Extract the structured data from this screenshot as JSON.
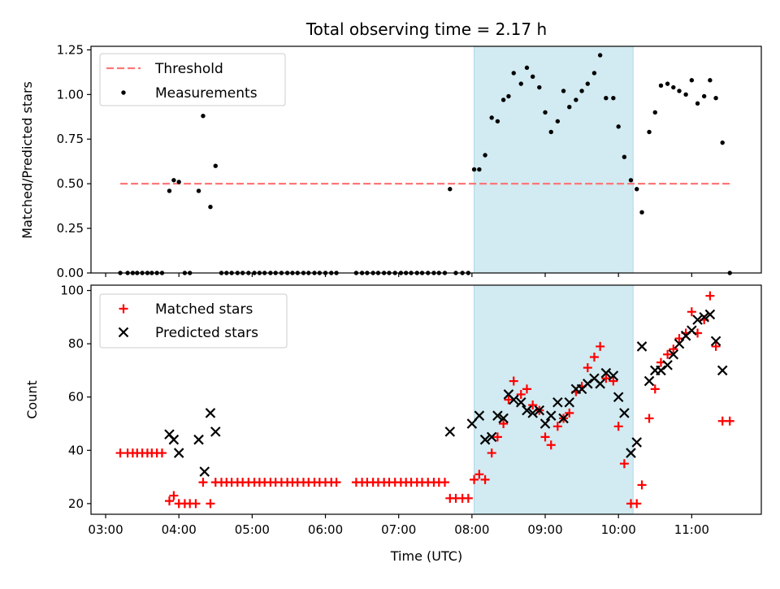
{
  "chart_data": [
    {
      "type": "scatter",
      "title": "Total observing time = 2.17 h",
      "xlabel": "",
      "ylabel": "Matched/Predicted stars",
      "xlim": [
        2.8,
        11.95
      ],
      "ylim": [
        0,
        1.27
      ],
      "yticks": [
        "0.00",
        "0.25",
        "0.50",
        "0.75",
        "1.00",
        "1.25"
      ],
      "shaded_span": [
        8.03,
        10.2
      ],
      "shade_color": "#add8e6",
      "legend_position": "top-left",
      "threshold": {
        "name": "Threshold",
        "value": 0.5,
        "x_range": [
          3.2,
          11.55
        ],
        "color": "#ff7777",
        "style": "dashed"
      },
      "series": [
        {
          "name": "Measurements",
          "marker": "dot",
          "color": "#000000",
          "points": [
            [
              3.2,
              0
            ],
            [
              3.3,
              0
            ],
            [
              3.37,
              0
            ],
            [
              3.43,
              0
            ],
            [
              3.5,
              0
            ],
            [
              3.57,
              0
            ],
            [
              3.63,
              0
            ],
            [
              3.7,
              0
            ],
            [
              3.77,
              0
            ],
            [
              3.87,
              0.46
            ],
            [
              3.93,
              0.52
            ],
            [
              4.0,
              0.51
            ],
            [
              4.08,
              0
            ],
            [
              4.15,
              0
            ],
            [
              4.27,
              0.46
            ],
            [
              4.33,
              0.88
            ],
            [
              4.43,
              0.37
            ],
            [
              4.5,
              0.6
            ],
            [
              4.58,
              0
            ],
            [
              4.65,
              0
            ],
            [
              4.72,
              0
            ],
            [
              4.8,
              0
            ],
            [
              4.87,
              0
            ],
            [
              4.95,
              0
            ],
            [
              5.03,
              0
            ],
            [
              5.1,
              0
            ],
            [
              5.17,
              0
            ],
            [
              5.25,
              0
            ],
            [
              5.32,
              0
            ],
            [
              5.4,
              0
            ],
            [
              5.48,
              0
            ],
            [
              5.55,
              0
            ],
            [
              5.62,
              0
            ],
            [
              5.7,
              0
            ],
            [
              5.77,
              0
            ],
            [
              5.85,
              0
            ],
            [
              5.92,
              0
            ],
            [
              6.0,
              0
            ],
            [
              6.08,
              0
            ],
            [
              6.15,
              0
            ],
            [
              6.42,
              0
            ],
            [
              6.5,
              0
            ],
            [
              6.57,
              0
            ],
            [
              6.65,
              0
            ],
            [
              6.72,
              0
            ],
            [
              6.8,
              0
            ],
            [
              6.87,
              0
            ],
            [
              6.95,
              0
            ],
            [
              7.03,
              0
            ],
            [
              7.1,
              0
            ],
            [
              7.17,
              0
            ],
            [
              7.25,
              0
            ],
            [
              7.32,
              0
            ],
            [
              7.4,
              0
            ],
            [
              7.48,
              0
            ],
            [
              7.55,
              0
            ],
            [
              7.63,
              0
            ],
            [
              7.7,
              0.47
            ],
            [
              7.78,
              0
            ],
            [
              7.87,
              0
            ],
            [
              7.95,
              0
            ],
            [
              8.03,
              0.58
            ],
            [
              8.1,
              0.58
            ],
            [
              8.18,
              0.66
            ],
            [
              8.27,
              0.87
            ],
            [
              8.35,
              0.85
            ],
            [
              8.43,
              0.97
            ],
            [
              8.5,
              0.99
            ],
            [
              8.57,
              1.12
            ],
            [
              8.67,
              1.06
            ],
            [
              8.75,
              1.15
            ],
            [
              8.83,
              1.1
            ],
            [
              8.92,
              1.04
            ],
            [
              9.0,
              0.9
            ],
            [
              9.08,
              0.79
            ],
            [
              9.17,
              0.85
            ],
            [
              9.25,
              1.02
            ],
            [
              9.33,
              0.93
            ],
            [
              9.42,
              0.97
            ],
            [
              9.5,
              1.02
            ],
            [
              9.58,
              1.06
            ],
            [
              9.67,
              1.12
            ],
            [
              9.75,
              1.22
            ],
            [
              9.83,
              0.98
            ],
            [
              9.93,
              0.98
            ],
            [
              10.0,
              0.82
            ],
            [
              10.08,
              0.65
            ],
            [
              10.17,
              0.52
            ],
            [
              10.25,
              0.47
            ],
            [
              10.32,
              0.34
            ],
            [
              10.42,
              0.79
            ],
            [
              10.5,
              0.9
            ],
            [
              10.58,
              1.05
            ],
            [
              10.67,
              1.06
            ],
            [
              10.75,
              1.04
            ],
            [
              10.83,
              1.02
            ],
            [
              10.92,
              1.0
            ],
            [
              11.0,
              1.08
            ],
            [
              11.08,
              0.95
            ],
            [
              11.17,
              0.99
            ],
            [
              11.25,
              1.08
            ],
            [
              11.33,
              0.98
            ],
            [
              11.42,
              0.73
            ],
            [
              11.52,
              0
            ]
          ]
        }
      ]
    },
    {
      "type": "scatter",
      "title": "",
      "xlabel": "Time (UTC)",
      "ylabel": "Count",
      "xlim": [
        2.8,
        11.95
      ],
      "ylim": [
        16,
        102
      ],
      "yticks": [
        "20",
        "40",
        "60",
        "80",
        "100"
      ],
      "xticks": [
        "03:00",
        "04:00",
        "05:00",
        "06:00",
        "07:00",
        "08:00",
        "09:00",
        "10:00",
        "11:00"
      ],
      "shaded_span": [
        8.03,
        10.2
      ],
      "shade_color": "#add8e6",
      "legend_position": "top-left",
      "series": [
        {
          "name": "Matched stars",
          "marker": "plus",
          "color": "#ff0000",
          "points": [
            [
              3.2,
              39
            ],
            [
              3.3,
              39
            ],
            [
              3.37,
              39
            ],
            [
              3.43,
              39
            ],
            [
              3.5,
              39
            ],
            [
              3.57,
              39
            ],
            [
              3.63,
              39
            ],
            [
              3.7,
              39
            ],
            [
              3.77,
              39
            ],
            [
              3.87,
              21
            ],
            [
              3.93,
              23
            ],
            [
              4.0,
              20
            ],
            [
              4.08,
              20
            ],
            [
              4.15,
              20
            ],
            [
              4.23,
              20
            ],
            [
              4.33,
              28
            ],
            [
              4.43,
              20
            ],
            [
              4.5,
              28
            ],
            [
              4.58,
              28
            ],
            [
              4.65,
              28
            ],
            [
              4.72,
              28
            ],
            [
              4.8,
              28
            ],
            [
              4.87,
              28
            ],
            [
              4.95,
              28
            ],
            [
              5.03,
              28
            ],
            [
              5.1,
              28
            ],
            [
              5.17,
              28
            ],
            [
              5.25,
              28
            ],
            [
              5.32,
              28
            ],
            [
              5.4,
              28
            ],
            [
              5.48,
              28
            ],
            [
              5.55,
              28
            ],
            [
              5.62,
              28
            ],
            [
              5.7,
              28
            ],
            [
              5.77,
              28
            ],
            [
              5.85,
              28
            ],
            [
              5.92,
              28
            ],
            [
              6.0,
              28
            ],
            [
              6.08,
              28
            ],
            [
              6.15,
              28
            ],
            [
              6.42,
              28
            ],
            [
              6.5,
              28
            ],
            [
              6.57,
              28
            ],
            [
              6.65,
              28
            ],
            [
              6.72,
              28
            ],
            [
              6.8,
              28
            ],
            [
              6.87,
              28
            ],
            [
              6.95,
              28
            ],
            [
              7.03,
              28
            ],
            [
              7.1,
              28
            ],
            [
              7.17,
              28
            ],
            [
              7.25,
              28
            ],
            [
              7.32,
              28
            ],
            [
              7.4,
              28
            ],
            [
              7.48,
              28
            ],
            [
              7.55,
              28
            ],
            [
              7.63,
              28
            ],
            [
              7.7,
              22
            ],
            [
              7.78,
              22
            ],
            [
              7.87,
              22
            ],
            [
              7.95,
              22
            ],
            [
              8.03,
              29
            ],
            [
              8.1,
              31
            ],
            [
              8.18,
              29
            ],
            [
              8.27,
              39
            ],
            [
              8.35,
              45
            ],
            [
              8.43,
              50
            ],
            [
              8.5,
              59
            ],
            [
              8.57,
              66
            ],
            [
              8.67,
              61
            ],
            [
              8.75,
              63
            ],
            [
              8.83,
              57
            ],
            [
              8.92,
              55
            ],
            [
              9.0,
              45
            ],
            [
              9.08,
              42
            ],
            [
              9.17,
              49
            ],
            [
              9.25,
              52
            ],
            [
              9.33,
              54
            ],
            [
              9.42,
              62
            ],
            [
              9.5,
              64
            ],
            [
              9.58,
              71
            ],
            [
              9.67,
              75
            ],
            [
              9.75,
              79
            ],
            [
              9.83,
              67
            ],
            [
              9.93,
              66
            ],
            [
              10.0,
              49
            ],
            [
              10.08,
              35
            ],
            [
              10.17,
              20
            ],
            [
              10.25,
              20
            ],
            [
              10.32,
              27
            ],
            [
              10.42,
              52
            ],
            [
              10.5,
              63
            ],
            [
              10.58,
              73
            ],
            [
              10.67,
              76
            ],
            [
              10.75,
              78
            ],
            [
              10.83,
              82
            ],
            [
              10.92,
              84
            ],
            [
              11.0,
              92
            ],
            [
              11.08,
              84
            ],
            [
              11.17,
              89
            ],
            [
              11.25,
              98
            ],
            [
              11.33,
              79
            ],
            [
              11.42,
              51
            ],
            [
              11.52,
              51
            ]
          ]
        },
        {
          "name": "Predicted stars",
          "marker": "x",
          "color": "#000000",
          "points": [
            [
              3.87,
              46
            ],
            [
              3.93,
              44
            ],
            [
              4.0,
              39
            ],
            [
              4.27,
              44
            ],
            [
              4.35,
              32
            ],
            [
              4.43,
              54
            ],
            [
              4.5,
              47
            ],
            [
              7.7,
              47
            ],
            [
              8.0,
              50
            ],
            [
              8.1,
              53
            ],
            [
              8.18,
              44
            ],
            [
              8.27,
              45
            ],
            [
              8.35,
              53
            ],
            [
              8.43,
              52
            ],
            [
              8.5,
              61
            ],
            [
              8.57,
              59
            ],
            [
              8.67,
              58
            ],
            [
              8.75,
              55
            ],
            [
              8.83,
              54
            ],
            [
              8.92,
              55
            ],
            [
              9.0,
              50
            ],
            [
              9.08,
              53
            ],
            [
              9.17,
              58
            ],
            [
              9.25,
              52
            ],
            [
              9.33,
              58
            ],
            [
              9.42,
              63
            ],
            [
              9.5,
              63
            ],
            [
              9.58,
              65
            ],
            [
              9.67,
              67
            ],
            [
              9.75,
              65
            ],
            [
              9.83,
              69
            ],
            [
              9.93,
              68
            ],
            [
              10.0,
              60
            ],
            [
              10.08,
              54
            ],
            [
              10.17,
              39
            ],
            [
              10.25,
              43
            ],
            [
              10.32,
              79
            ],
            [
              10.42,
              66
            ],
            [
              10.5,
              70
            ],
            [
              10.58,
              70
            ],
            [
              10.67,
              72
            ],
            [
              10.75,
              76
            ],
            [
              10.83,
              80
            ],
            [
              10.92,
              83
            ],
            [
              11.0,
              85
            ],
            [
              11.08,
              89
            ],
            [
              11.17,
              90
            ],
            [
              11.25,
              91
            ],
            [
              11.33,
              81
            ],
            [
              11.42,
              70
            ]
          ]
        }
      ]
    }
  ]
}
